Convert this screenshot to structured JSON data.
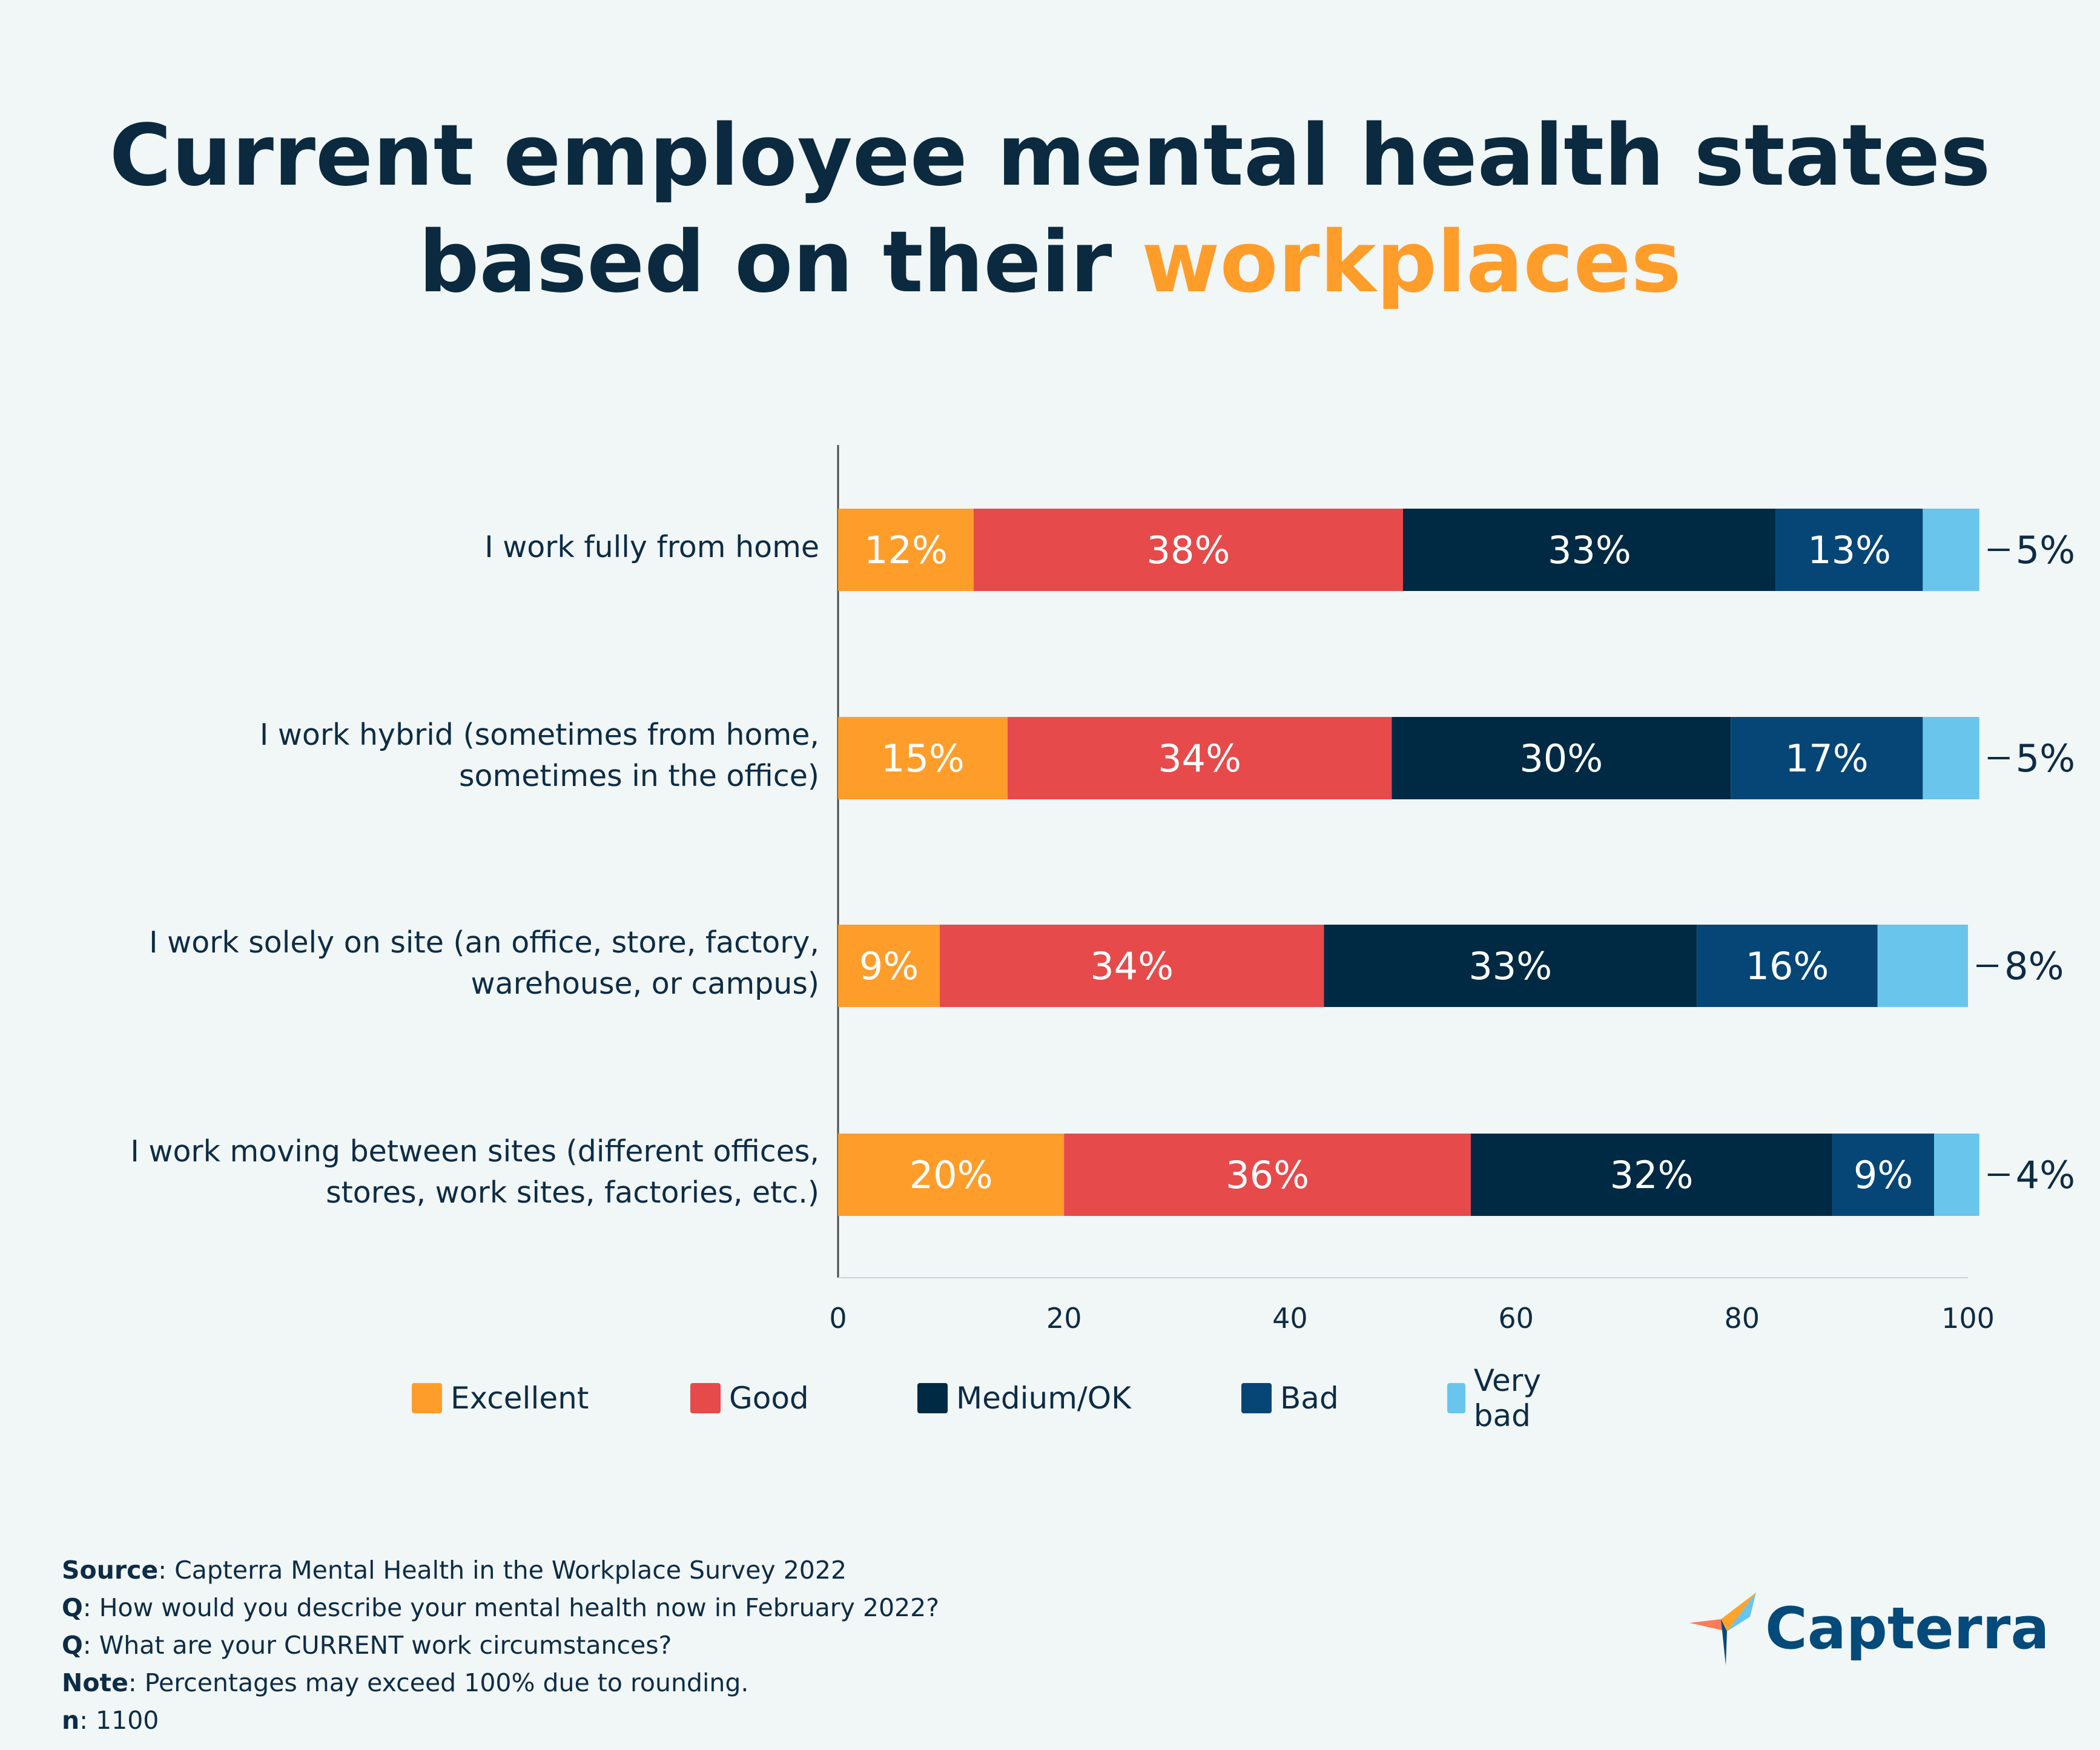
{
  "title": {
    "line1": "Current employee mental health states",
    "line2_prefix": "based on their ",
    "line2_accent": "workplaces"
  },
  "colors": {
    "Excellent": "#ff9d2b",
    "Good": "#e64a4a",
    "Medium/OK": "#002a43",
    "Bad": "#054677",
    "Very bad": "#6ac5ec",
    "accent": "#ff9d2b",
    "text": "#0d2c45"
  },
  "chart_data": {
    "type": "bar",
    "orientation": "horizontal",
    "stacked": true,
    "categories": [
      "I work fully from home",
      "I work hybrid (sometimes from home, sometimes in the office)",
      "I work solely on site (an office, store, factory, warehouse, or campus)",
      "I work moving between sites (different offices, stores, work sites, factories, etc.)"
    ],
    "series": [
      {
        "name": "Excellent",
        "values": [
          12,
          15,
          9,
          20
        ],
        "labels": [
          "12%",
          "15%",
          "9%",
          "20%"
        ]
      },
      {
        "name": "Good",
        "values": [
          38,
          34,
          34,
          36
        ],
        "labels": [
          "38%",
          "34%",
          "34%",
          "36%"
        ]
      },
      {
        "name": "Medium/OK",
        "values": [
          33,
          30,
          33,
          32
        ],
        "labels": [
          "33%",
          "30%",
          "33%",
          "32%"
        ]
      },
      {
        "name": "Bad",
        "values": [
          13,
          17,
          16,
          9
        ],
        "labels": [
          "13%",
          "17%",
          "16%",
          "9%"
        ]
      },
      {
        "name": "Very bad",
        "values": [
          5,
          5,
          8,
          4
        ],
        "labels": [
          "5%",
          "5%",
          "8%",
          "4%"
        ]
      }
    ],
    "xlim": [
      0,
      100
    ],
    "xticks": [
      "0",
      "20",
      "40",
      "60",
      "80",
      "100"
    ],
    "legend_position": "bottom"
  },
  "legend": [
    "Excellent",
    "Good",
    "Medium/OK",
    "Bad",
    "Very bad"
  ],
  "footer": {
    "source_label": "Source",
    "source_text": ": Capterra Mental Health in the Workplace Survey 2022",
    "q1_label": "Q",
    "q1_text": ": How would you describe your mental health now in February 2022?",
    "q2_label": "Q",
    "q2_text": ": What are your CURRENT work circumstances?",
    "note_label": "Note",
    "note_text": ": Percentages may exceed 100% due to rounding.",
    "n_label": "n",
    "n_text": ": 1100"
  },
  "logo": {
    "text": "Capterra"
  }
}
